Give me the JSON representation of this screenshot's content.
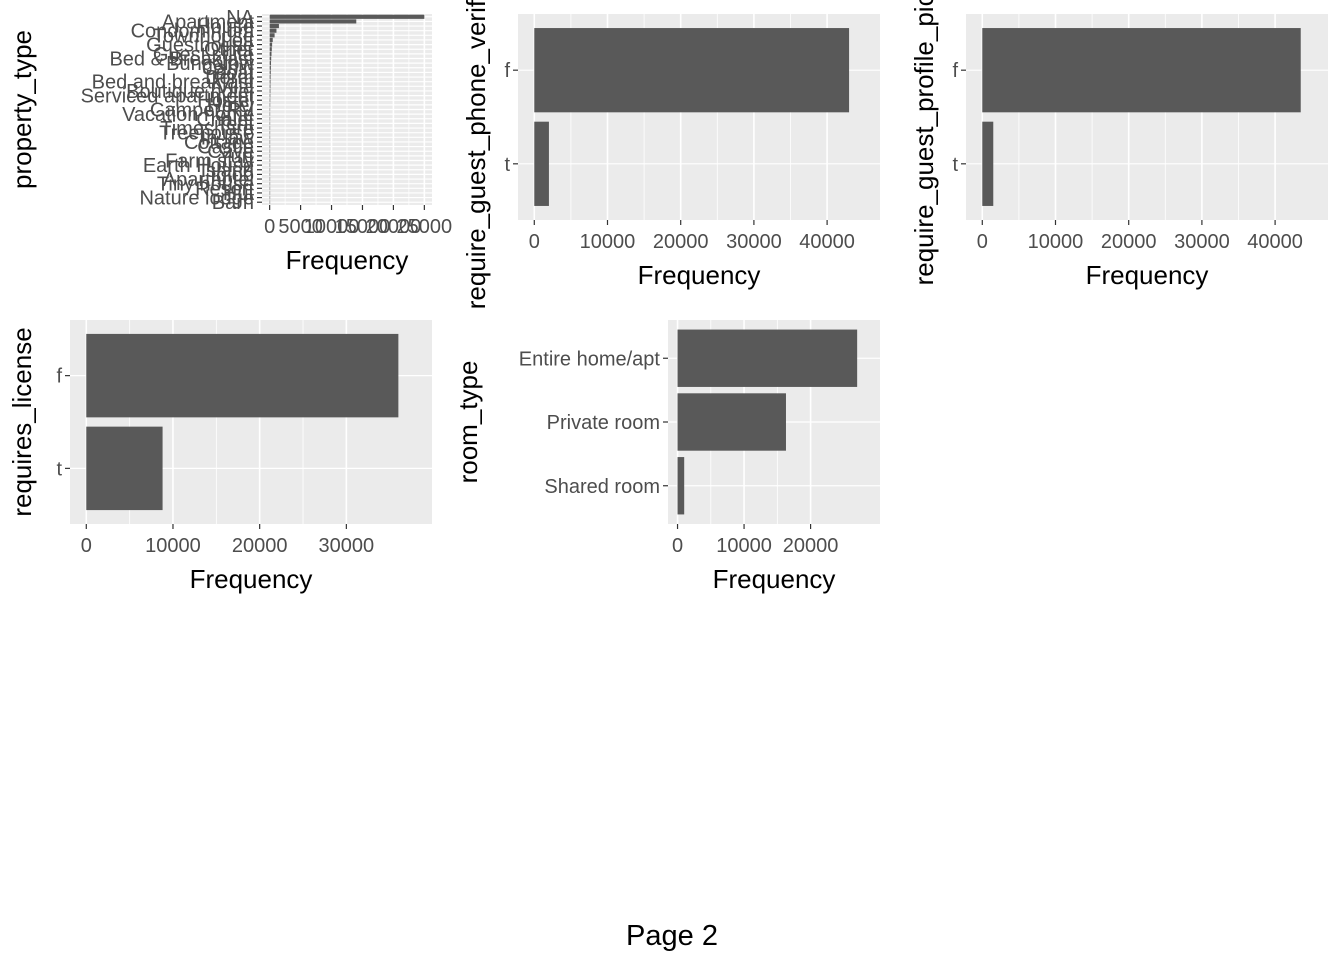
{
  "page_label": "Page 2",
  "colors": {
    "panel_bg": "#EBEBEB",
    "grid_major": "#FFFFFF",
    "bar": "#595959",
    "tick_text": "#4D4D4D",
    "axis_title": "#000000"
  },
  "chart_data": [
    {
      "type": "bar",
      "orientation": "horizontal",
      "title": "",
      "xlabel": "Frequency",
      "ylabel": "property_type",
      "xlim": [
        0,
        25000
      ],
      "xticks": [
        0,
        5000,
        10000,
        15000,
        20000,
        25000
      ],
      "xtick_labels": [
        "0",
        "5000",
        "10000",
        "15000",
        "20000",
        "25000"
      ],
      "categories": [
        "NA",
        "Apartment",
        "House",
        "Condominium",
        "Townhouse",
        "Loft",
        "Guesthouse",
        "Other",
        "Guest suite",
        "Bed & Breakfast",
        "Bungalow",
        "Cabin",
        "Boat",
        "Dorm",
        "Bed and breakfast",
        "Villa",
        "Boutique hotel",
        "Serviced apartment",
        "Hostel",
        "Hotel",
        "Camper/RV",
        "Vacation home",
        "Chalet",
        "Tent",
        "Timeshare",
        "Treehouse",
        "In-law",
        "Cottage",
        "Castle",
        "Cave",
        "Yurt",
        "Farm stay",
        "Earth House",
        "Island",
        "Igloo",
        "Aparthotel",
        "Tiny house",
        "Resort",
        "Hut",
        "Nature lodge",
        "Barn"
      ],
      "values": [
        25000,
        14000,
        1500,
        1100,
        800,
        500,
        400,
        350,
        300,
        250,
        220,
        200,
        180,
        150,
        140,
        130,
        120,
        110,
        100,
        90,
        80,
        70,
        60,
        55,
        50,
        45,
        40,
        35,
        30,
        28,
        25,
        22,
        20,
        18,
        16,
        14,
        12,
        10,
        8,
        6,
        4
      ],
      "grid": true
    },
    {
      "type": "bar",
      "orientation": "horizontal",
      "title": "",
      "xlabel": "Frequency",
      "ylabel": "require_guest_phone_verification",
      "xlim": [
        0,
        45000
      ],
      "xticks": [
        0,
        10000,
        20000,
        30000,
        40000
      ],
      "xtick_labels": [
        "0",
        "10000",
        "20000",
        "30000",
        "40000"
      ],
      "categories": [
        "f",
        "t"
      ],
      "values": [
        43000,
        2000
      ],
      "grid": true
    },
    {
      "type": "bar",
      "orientation": "horizontal",
      "title": "",
      "xlabel": "Frequency",
      "ylabel": "require_guest_profile_picture",
      "xlim": [
        0,
        45000
      ],
      "xticks": [
        0,
        10000,
        20000,
        30000,
        40000
      ],
      "xtick_labels": [
        "0",
        "10000",
        "20000",
        "30000",
        "40000"
      ],
      "categories": [
        "f",
        "t"
      ],
      "values": [
        43500,
        1500
      ],
      "grid": true
    },
    {
      "type": "bar",
      "orientation": "horizontal",
      "title": "",
      "xlabel": "Frequency",
      "ylabel": "requires_license",
      "xlim": [
        0,
        38000
      ],
      "xticks": [
        0,
        10000,
        20000,
        30000
      ],
      "xtick_labels": [
        "0",
        "10000",
        "20000",
        "30000"
      ],
      "categories": [
        "f",
        "t"
      ],
      "values": [
        36000,
        8800
      ],
      "grid": true
    },
    {
      "type": "bar",
      "orientation": "horizontal",
      "title": "",
      "xlabel": "Frequency",
      "ylabel": "room_type",
      "xlim": [
        0,
        29000
      ],
      "xticks": [
        0,
        10000,
        20000
      ],
      "xtick_labels": [
        "0",
        "10000",
        "20000"
      ],
      "categories": [
        "Entire home/apt",
        "Private room",
        "Shared room"
      ],
      "values": [
        27000,
        16300,
        1000
      ],
      "grid": true
    }
  ]
}
